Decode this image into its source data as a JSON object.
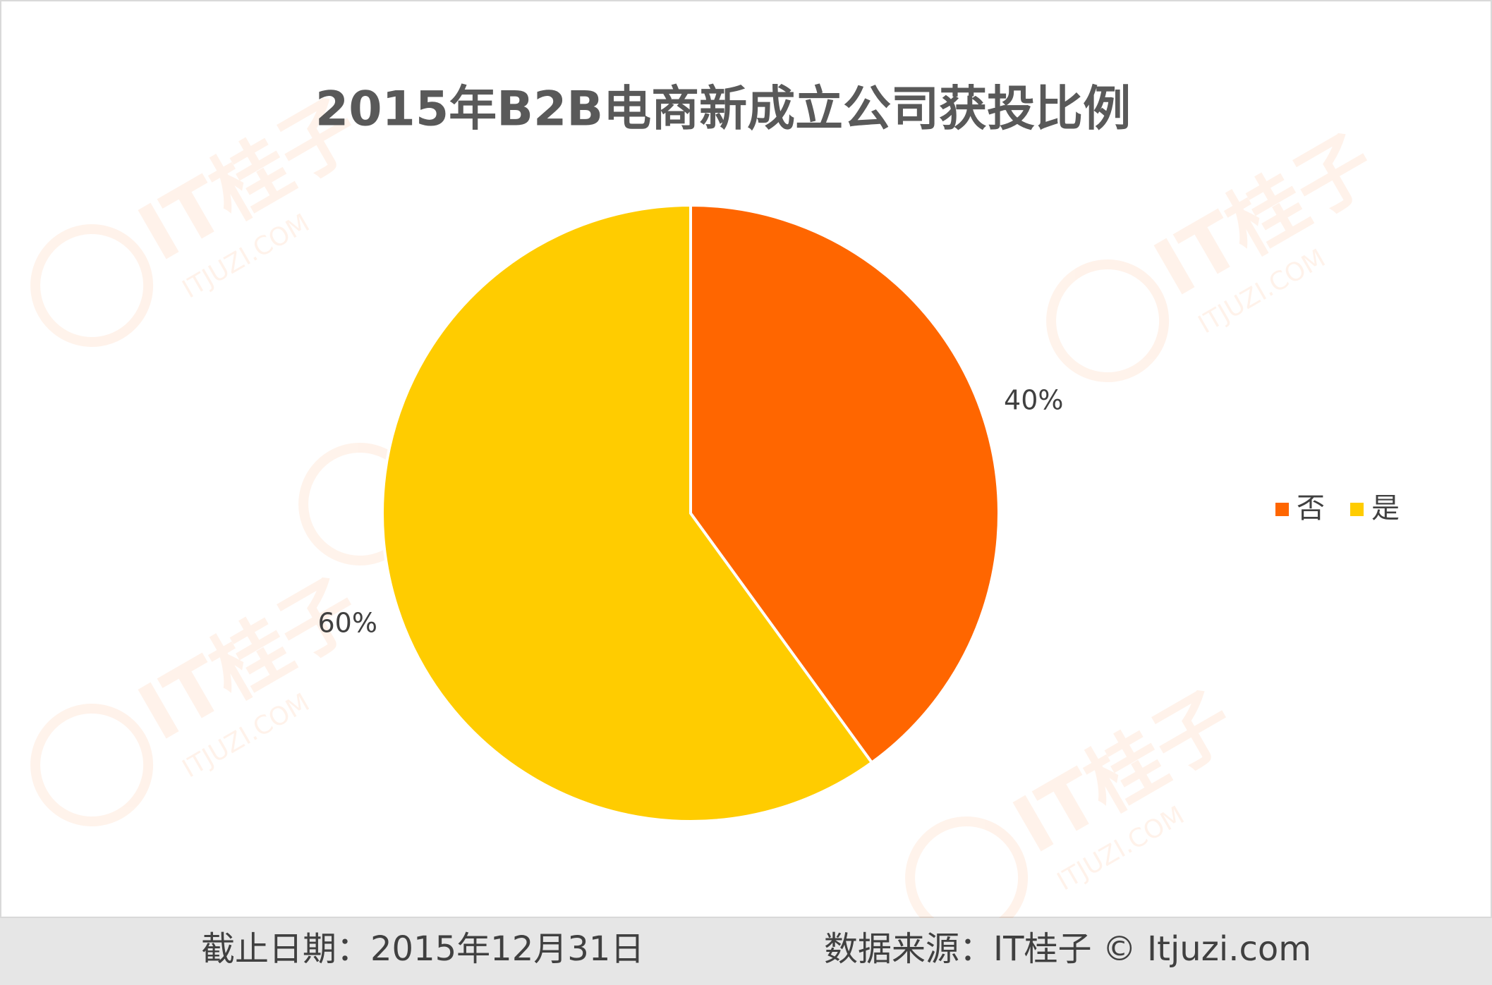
{
  "chart_data": {
    "type": "pie",
    "title": "2015年B2B电商新成立公司获投比例",
    "categories": [
      "否",
      "是"
    ],
    "values": [
      40,
      60
    ],
    "value_labels": [
      "40%",
      "60%"
    ],
    "colors": [
      "#ff6600",
      "#ffcc00"
    ],
    "legend": "right"
  },
  "watermark": {
    "brand": "IT桂子",
    "site": "ITJUZI.COM"
  },
  "footer": {
    "date": "截止日期：2015年12月31日",
    "source": "数据来源：IT桂子 © Itjuzi.com"
  }
}
